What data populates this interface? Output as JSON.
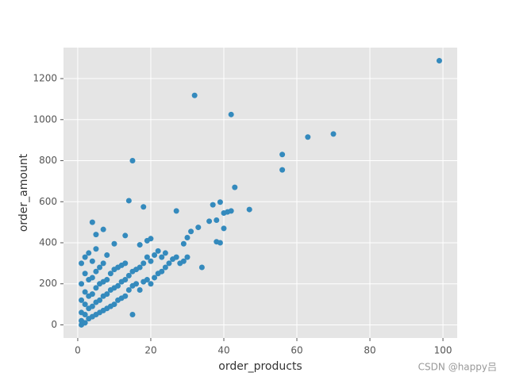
{
  "chart_data": {
    "type": "scatter",
    "x_label": "order_products",
    "y_label": "order_amount",
    "watermark": "CSDN @happy吕",
    "color": "#348ABD",
    "grid": true,
    "xlim": [
      -3.9,
      103.9
    ],
    "ylim": [
      -64,
      1351
    ],
    "xticks": [
      0,
      20,
      40,
      60,
      80,
      100
    ],
    "yticks": [
      0,
      200,
      400,
      600,
      800,
      1000,
      1200
    ],
    "x": [
      1,
      1,
      1,
      1,
      1,
      1,
      2,
      2,
      2,
      2,
      2,
      2,
      3,
      3,
      3,
      3,
      3,
      4,
      4,
      4,
      4,
      4,
      5,
      5,
      5,
      5,
      5,
      6,
      6,
      6,
      6,
      7,
      7,
      7,
      7,
      8,
      8,
      8,
      8,
      9,
      9,
      9,
      10,
      10,
      10,
      11,
      11,
      11,
      12,
      12,
      12,
      13,
      13,
      13,
      14,
      14,
      15,
      15,
      15,
      16,
      16,
      17,
      17,
      18,
      18,
      19,
      19,
      20,
      20,
      21,
      21,
      22,
      22,
      23,
      23,
      24,
      24,
      25,
      26,
      27,
      28,
      29,
      30,
      99,
      32,
      42,
      70,
      63,
      56,
      56,
      15,
      43,
      47,
      14,
      18,
      39,
      40,
      41,
      42,
      37,
      36,
      38,
      39,
      40,
      38,
      34,
      33,
      31,
      30,
      29,
      27,
      4,
      7,
      5,
      13,
      10,
      17,
      19,
      20
    ],
    "y": [
      0,
      20,
      60,
      120,
      200,
      300,
      10,
      50,
      100,
      160,
      250,
      330,
      30,
      80,
      140,
      220,
      350,
      40,
      90,
      150,
      230,
      310,
      50,
      110,
      180,
      260,
      370,
      60,
      120,
      200,
      280,
      70,
      140,
      210,
      300,
      80,
      150,
      220,
      340,
      90,
      170,
      250,
      100,
      180,
      270,
      120,
      190,
      280,
      130,
      210,
      290,
      140,
      220,
      300,
      170,
      240,
      50,
      190,
      260,
      200,
      270,
      170,
      280,
      210,
      300,
      220,
      330,
      200,
      310,
      230,
      340,
      250,
      360,
      260,
      330,
      280,
      350,
      300,
      320,
      330,
      300,
      310,
      330,
      1287,
      1118,
      1025,
      930,
      915,
      830,
      755,
      800,
      670,
      562,
      605,
      575,
      598,
      545,
      550,
      555,
      585,
      505,
      510,
      400,
      470,
      405,
      280,
      475,
      455,
      425,
      395,
      555,
      500,
      465,
      440,
      435,
      395,
      390,
      410,
      420
    ]
  }
}
